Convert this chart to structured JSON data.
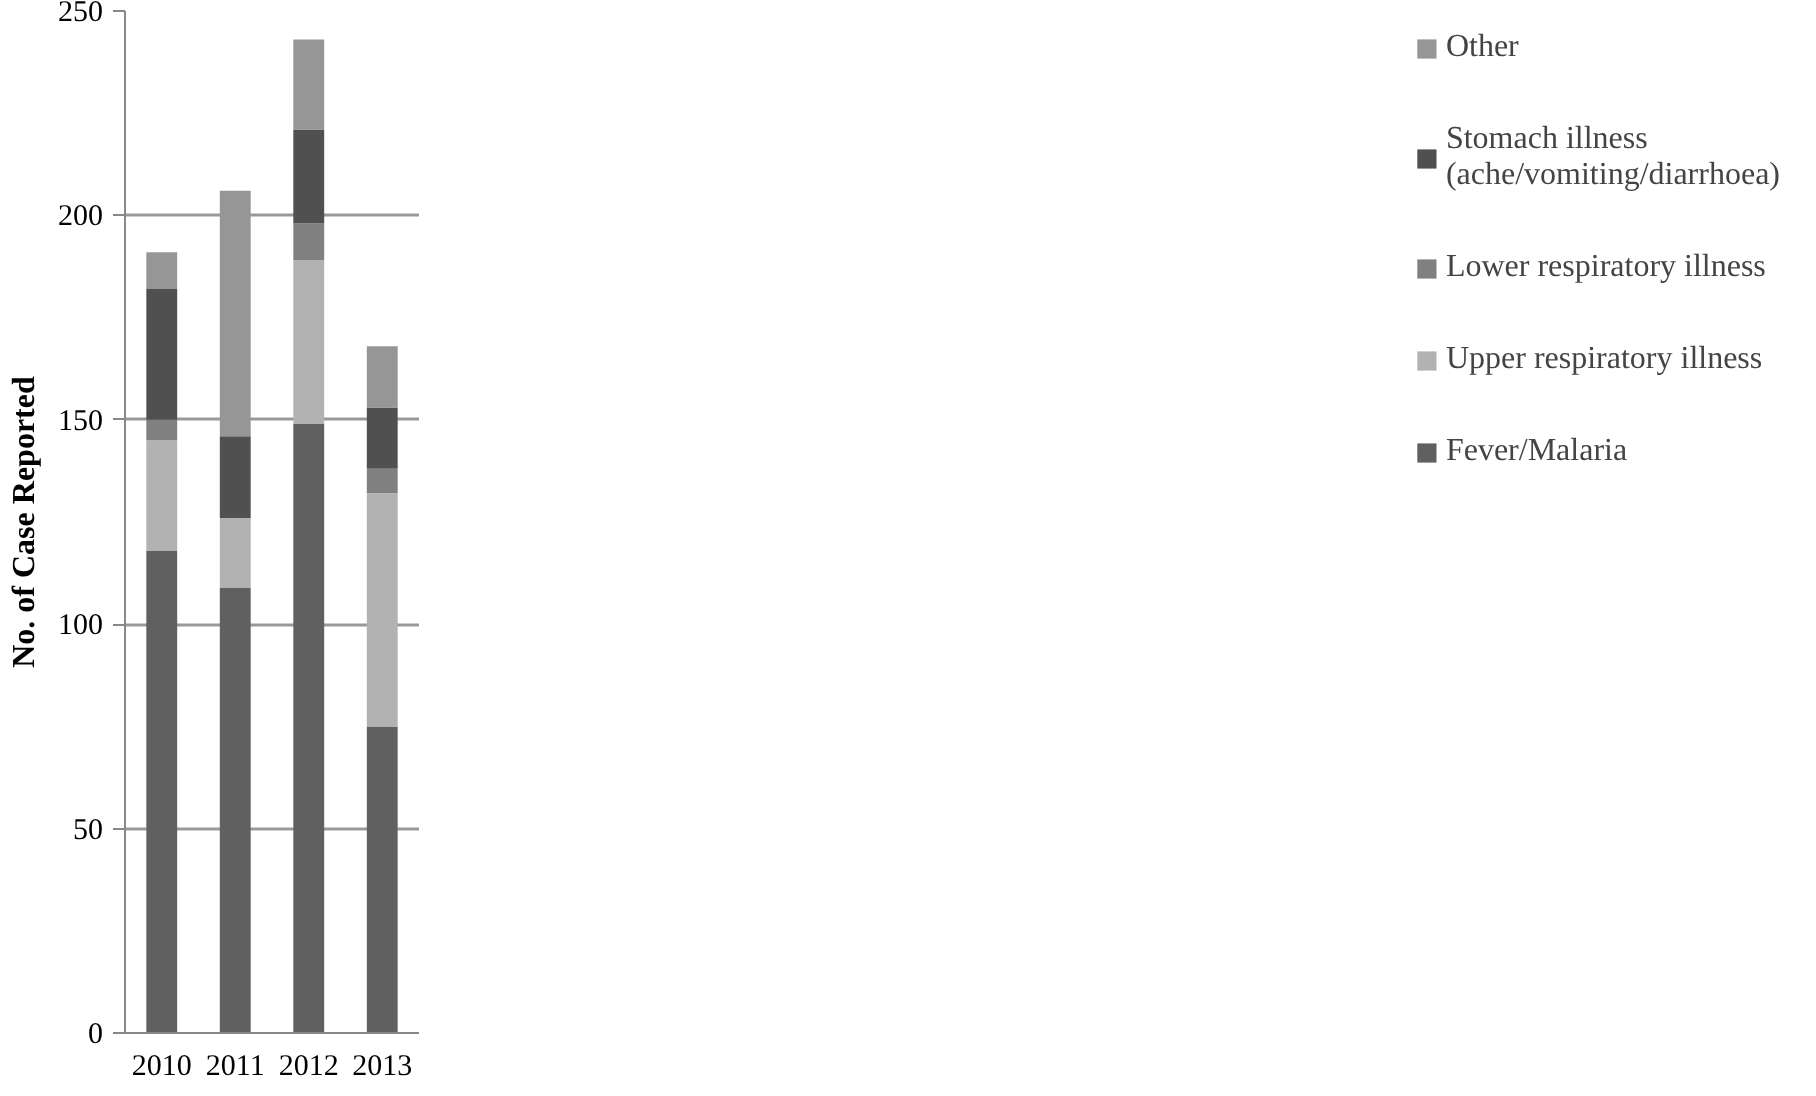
{
  "chart_data": {
    "type": "bar",
    "stacked": true,
    "ylabel": "No. of Case Reported",
    "categories": [
      "2010",
      "2011",
      "2012",
      "2013"
    ],
    "series": [
      {
        "name": "Fever/Malaria",
        "color": "#606060",
        "values": [
          118,
          109,
          149,
          75
        ]
      },
      {
        "name": "Upper respiratory illness",
        "color": "#b2b2b2",
        "values": [
          27,
          17,
          40,
          57
        ]
      },
      {
        "name": "Lower respiratory illness",
        "color": "#808080",
        "values": [
          5,
          0,
          9,
          6
        ]
      },
      {
        "name": "Stomach illness (ache/vomiting/diarrhoea)",
        "color": "#505050",
        "values": [
          32,
          20,
          23,
          15
        ]
      },
      {
        "name": "Other",
        "color": "#969696",
        "values": [
          9,
          60,
          22,
          15
        ]
      }
    ],
    "ylim": [
      0,
      250
    ],
    "yticks": [
      0,
      50,
      100,
      150,
      200,
      250
    ],
    "grid": "y",
    "legend": "right"
  }
}
